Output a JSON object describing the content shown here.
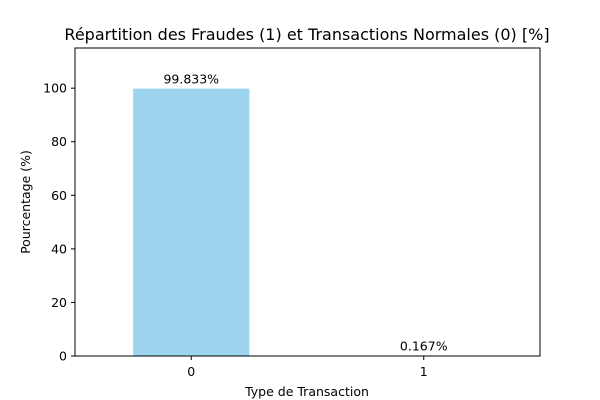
{
  "chart_data": {
    "type": "bar",
    "title": "Répartition des Fraudes (1) et Transactions Normales (0) [%]",
    "xlabel": "Type de Transaction",
    "ylabel": "Pourcentage (%)",
    "categories": [
      "0",
      "1"
    ],
    "values": [
      99.833,
      0.167
    ],
    "value_labels": [
      "99.833%",
      "0.167%"
    ],
    "ylim": [
      0,
      115
    ],
    "yticks": [
      0,
      20,
      40,
      60,
      80,
      100
    ],
    "bar_color": "#9dd5ee",
    "grid": false,
    "legend": "none"
  }
}
